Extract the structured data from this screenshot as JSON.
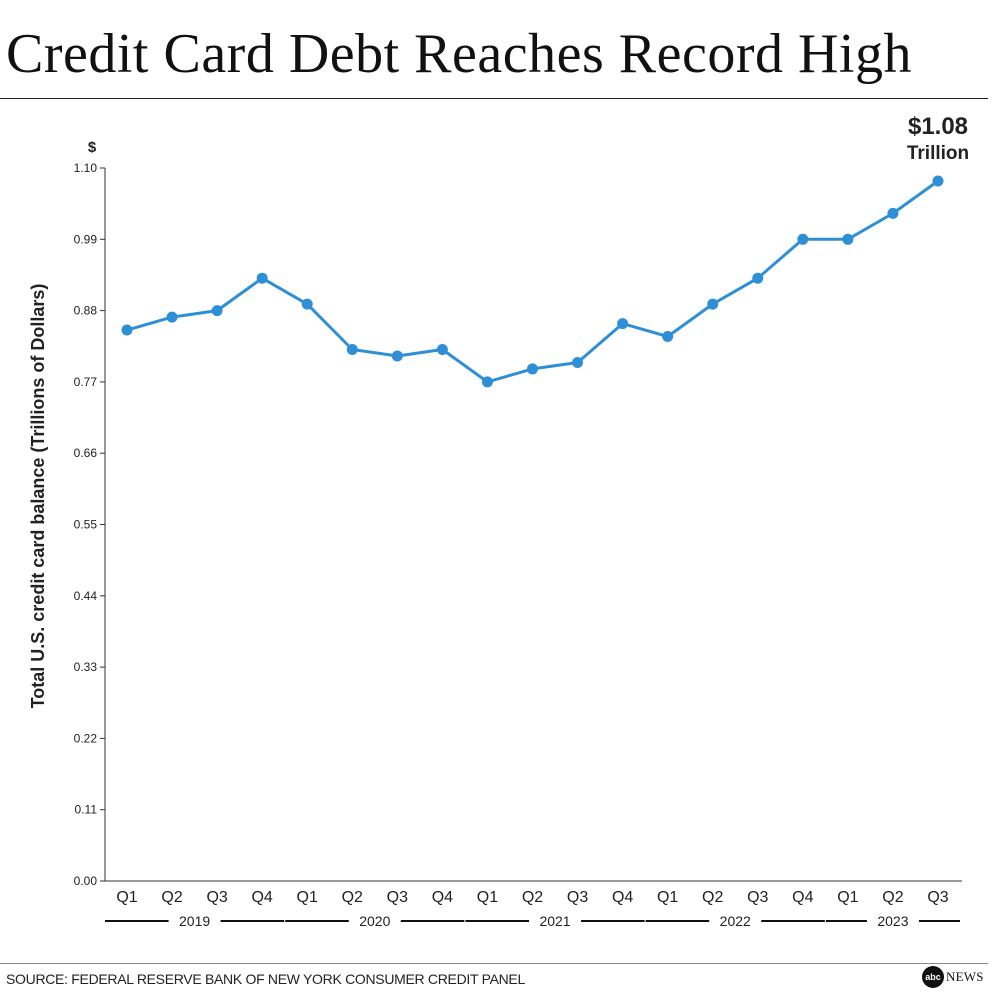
{
  "title": "Credit Card Debt Reaches Record High",
  "source": "SOURCE: FEDERAL RESERVE BANK OF NEW YORK CONSUMER CREDIT PANEL",
  "logo": {
    "mark": "abc",
    "text": "NEWS"
  },
  "colors": {
    "line": "#2f8fd6",
    "callout": "#14294f",
    "text": "#222222"
  },
  "chart_data": {
    "type": "line",
    "title": "Credit Card Debt Reaches Record High",
    "ylabel": "Total U.S. credit card balance (Trillions of Dollars)",
    "yunit": "$",
    "ylim": [
      0,
      1.1
    ],
    "yticks": [
      "0.00",
      "0.11",
      "0.22",
      "0.33",
      "0.44",
      "0.55",
      "0.66",
      "0.77",
      "0.88",
      "0.99",
      "1.10"
    ],
    "categories": [
      "Q1",
      "Q2",
      "Q3",
      "Q4",
      "Q1",
      "Q2",
      "Q3",
      "Q4",
      "Q1",
      "Q2",
      "Q3",
      "Q4",
      "Q1",
      "Q2",
      "Q3",
      "Q4",
      "Q1",
      "Q2",
      "Q3"
    ],
    "year_groups": [
      {
        "label": "2019",
        "start": 0,
        "end": 3
      },
      {
        "label": "2020",
        "start": 4,
        "end": 7
      },
      {
        "label": "2021",
        "start": 8,
        "end": 11
      },
      {
        "label": "2022",
        "start": 12,
        "end": 15
      },
      {
        "label": "2023",
        "start": 16,
        "end": 18
      }
    ],
    "series": [
      {
        "values": [
          0.85,
          0.87,
          0.88,
          0.93,
          0.89,
          0.82,
          0.81,
          0.82,
          0.77,
          0.79,
          0.8,
          0.86,
          0.84,
          0.89,
          0.93,
          0.99,
          0.99,
          1.03,
          1.08
        ]
      }
    ],
    "callout": {
      "value": "$1.08",
      "unit": "Trillion"
    },
    "grid": false
  }
}
